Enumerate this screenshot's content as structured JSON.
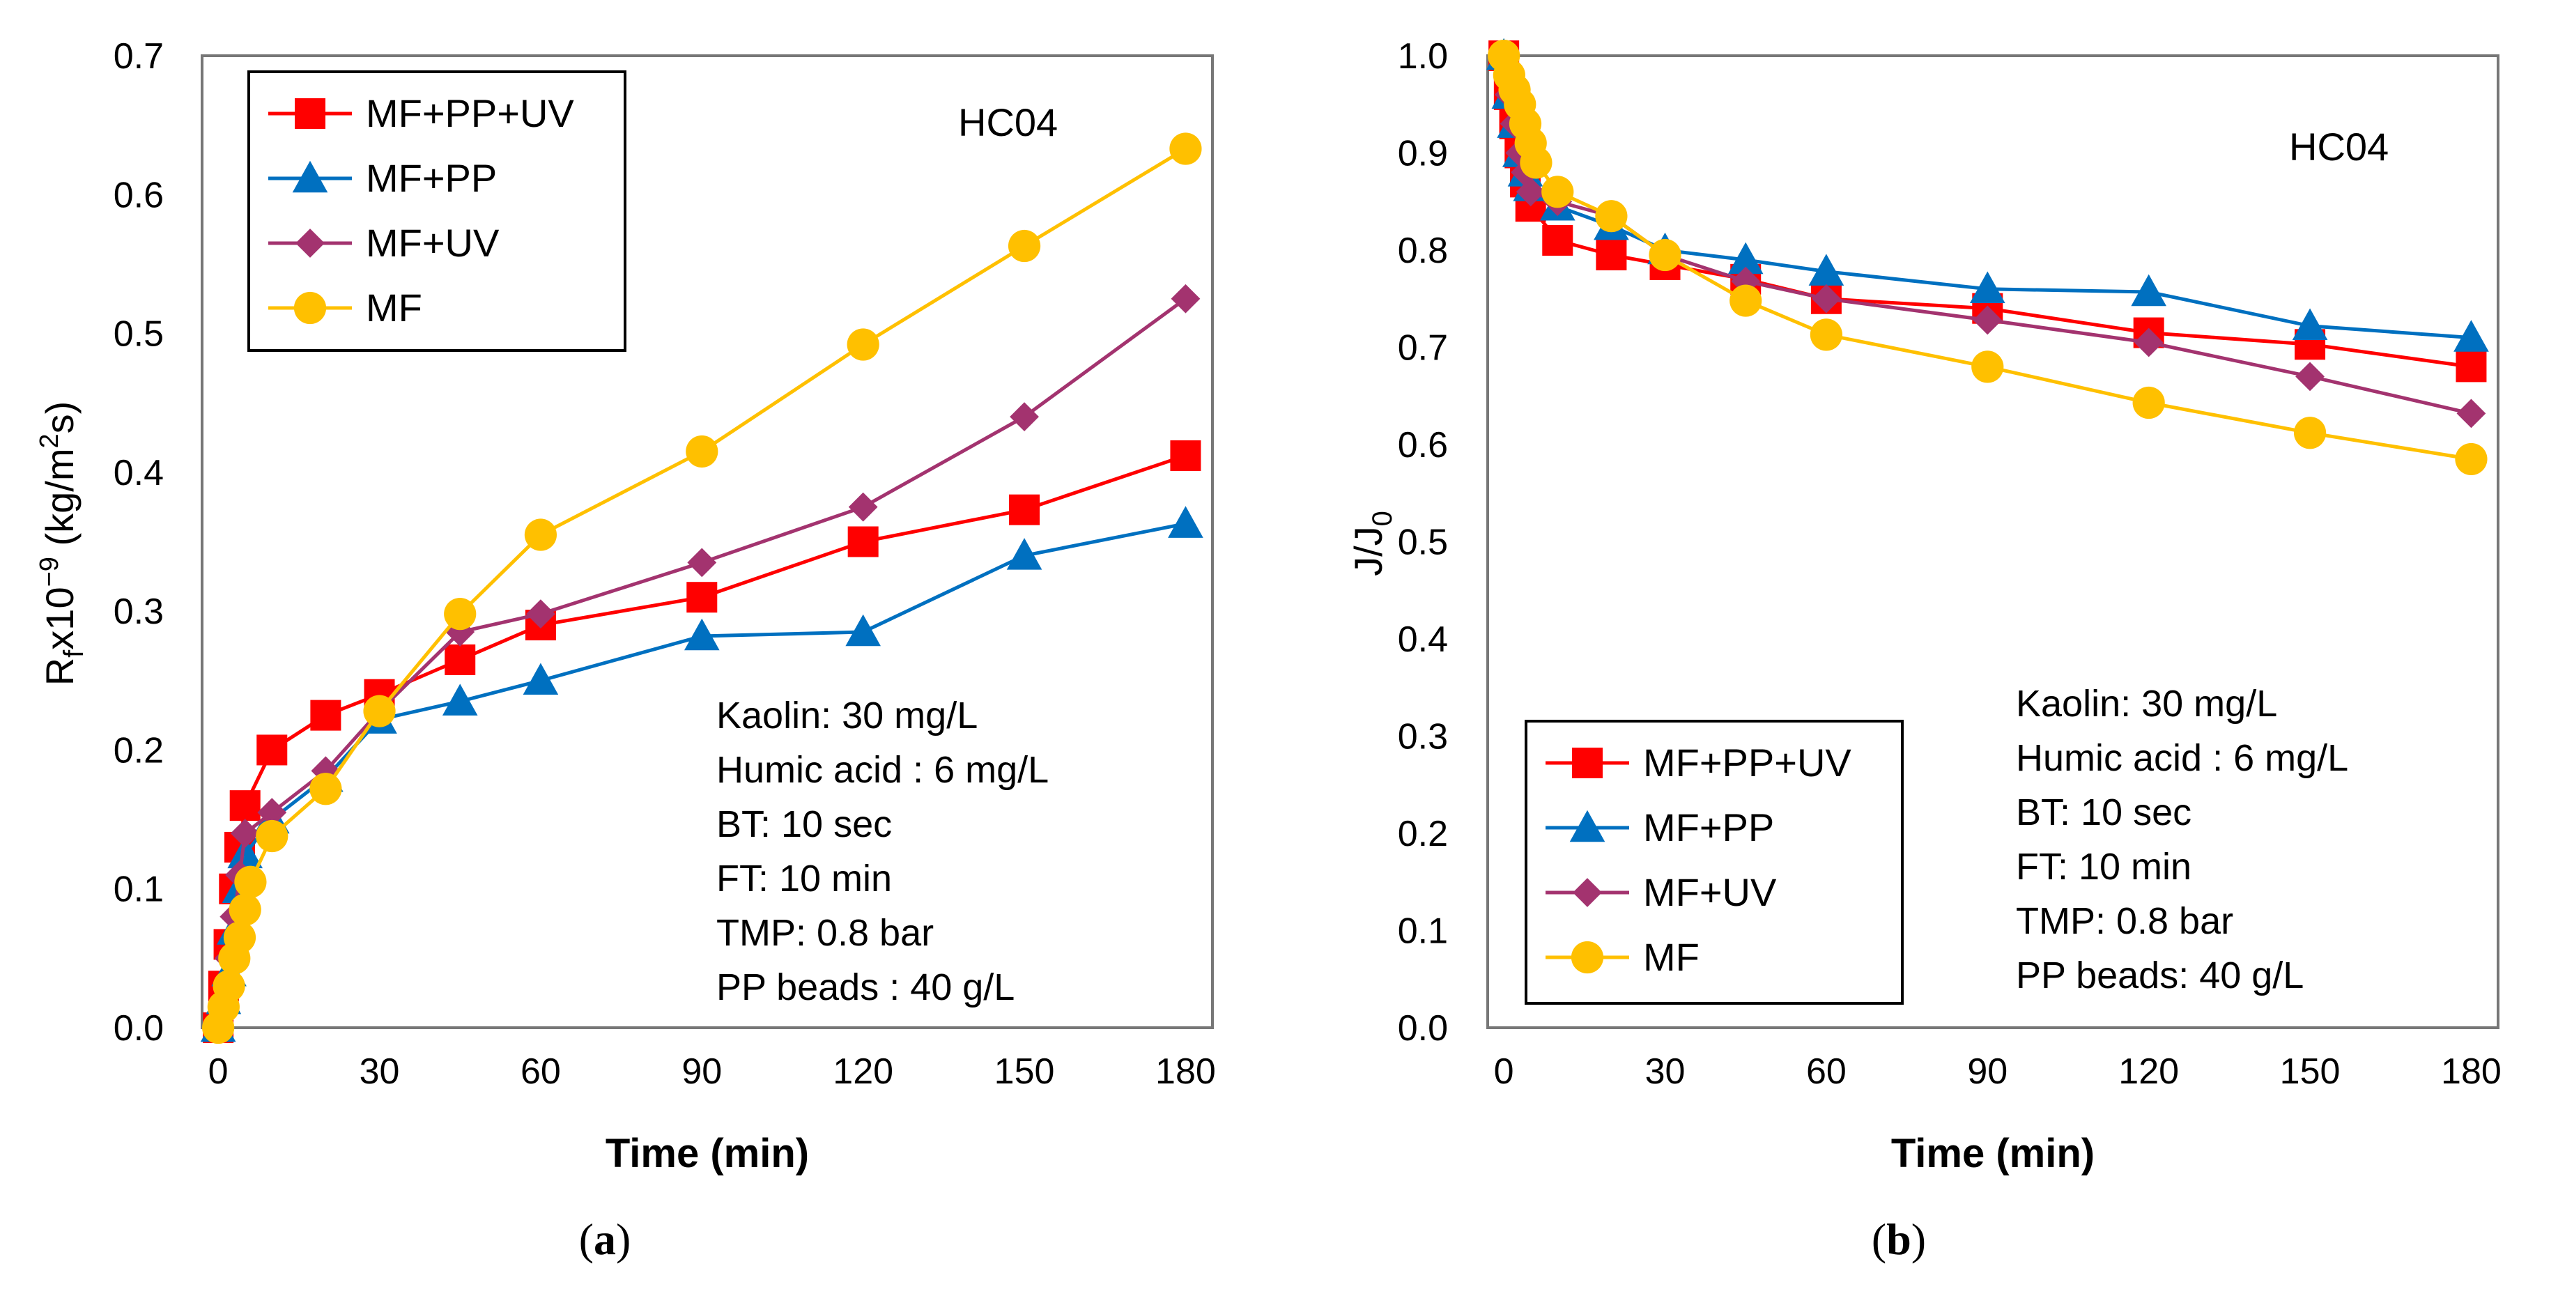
{
  "chart_data": [
    {
      "id": "a",
      "type": "line",
      "caption_paren_open": "(",
      "caption_letter": "a",
      "caption_paren_close": ")",
      "xlabel": "Time (min)",
      "ylabel_main": "R",
      "ylabel_sub": "f",
      "ylabel_rest": "x10",
      "ylabel_exp": "−9",
      "ylabel_unit_open": " (kg/m",
      "ylabel_unit_exp": "2",
      "ylabel_unit_close": "s)",
      "xlim": [
        -3,
        185
      ],
      "ylim": [
        0.0,
        0.7
      ],
      "xticks": [
        0,
        30,
        60,
        90,
        120,
        150,
        180
      ],
      "xtick_labels": [
        "0",
        "30",
        "60",
        "90",
        "120",
        "150",
        "180"
      ],
      "yticks": [
        0.0,
        0.1,
        0.2,
        0.3,
        0.4,
        0.5,
        0.6,
        0.7
      ],
      "ytick_labels": [
        "0.0",
        "0.1",
        "0.2",
        "0.3",
        "0.4",
        "0.5",
        "0.6",
        "0.7"
      ],
      "tag": "HC04",
      "legend_position": "top-left",
      "conditions": [
        "Kaolin: 30 mg/L",
        "Humic acid : 6 mg/L",
        "BT: 10 sec",
        "FT: 10 min",
        "TMP: 0.8 bar",
        "PP beads : 40 g/L"
      ],
      "series": [
        {
          "name": "MF+PP+UV",
          "marker": "square",
          "color": "#ff0000",
          "x": [
            0,
            1,
            2,
            3,
            4,
            5,
            10,
            20,
            30,
            45,
            60,
            90,
            120,
            150,
            180
          ],
          "y": [
            0.0,
            0.03,
            0.06,
            0.1,
            0.13,
            0.16,
            0.2,
            0.225,
            0.24,
            0.265,
            0.29,
            0.31,
            0.35,
            0.373,
            0.412
          ]
        },
        {
          "name": "MF+PP",
          "marker": "triangle",
          "color": "#0070c0",
          "x": [
            0,
            1,
            2,
            3,
            4,
            5,
            10,
            20,
            30,
            45,
            60,
            90,
            120,
            150,
            180
          ],
          "y": [
            0.0,
            0.02,
            0.04,
            0.07,
            0.1,
            0.125,
            0.15,
            0.18,
            0.222,
            0.235,
            0.25,
            0.282,
            0.285,
            0.34,
            0.363
          ]
        },
        {
          "name": "MF+UV",
          "marker": "diamond",
          "color": "#a3336f",
          "x": [
            0,
            1,
            2,
            3,
            4,
            5,
            10,
            20,
            30,
            45,
            60,
            90,
            120,
            150,
            180
          ],
          "y": [
            0.0,
            0.02,
            0.05,
            0.08,
            0.11,
            0.14,
            0.155,
            0.185,
            0.228,
            0.285,
            0.298,
            0.335,
            0.375,
            0.44,
            0.525
          ]
        },
        {
          "name": "MF",
          "marker": "circle",
          "color": "#ffc000",
          "x": [
            0,
            1,
            2,
            3,
            4,
            5,
            6,
            10,
            20,
            30,
            45,
            60,
            90,
            120,
            150,
            180
          ],
          "y": [
            0.0,
            0.015,
            0.03,
            0.05,
            0.065,
            0.085,
            0.105,
            0.138,
            0.172,
            0.228,
            0.298,
            0.355,
            0.415,
            0.492,
            0.563,
            0.633
          ]
        }
      ]
    },
    {
      "id": "b",
      "type": "line",
      "caption_paren_open": "(",
      "caption_letter": "b",
      "caption_paren_close": ")",
      "xlabel": "Time (min)",
      "ylabel_main": "J/J",
      "ylabel_sub": "0",
      "xlim": [
        -3,
        185
      ],
      "ylim": [
        0.0,
        1.0
      ],
      "xticks": [
        0,
        30,
        60,
        90,
        120,
        150,
        180
      ],
      "xtick_labels": [
        "0",
        "30",
        "60",
        "90",
        "120",
        "150",
        "180"
      ],
      "yticks": [
        0.0,
        0.1,
        0.2,
        0.3,
        0.4,
        0.5,
        0.6,
        0.7,
        0.8,
        0.9,
        1.0
      ],
      "ytick_labels": [
        "0.0",
        "0.1",
        "0.2",
        "0.3",
        "0.4",
        "0.5",
        "0.6",
        "0.7",
        "0.8",
        "0.9",
        "1.0"
      ],
      "tag": "HC04",
      "legend_position": "bottom-left",
      "conditions": [
        "Kaolin: 30 mg/L",
        "Humic acid : 6 mg/L",
        "BT: 10 sec",
        "FT: 10 min",
        "TMP: 0.8 bar",
        "PP beads: 40 g/L"
      ],
      "series": [
        {
          "name": "MF+PP+UV",
          "marker": "square",
          "color": "#ff0000",
          "x": [
            0,
            1,
            2,
            3,
            4,
            5,
            10,
            20,
            30,
            45,
            60,
            90,
            120,
            150,
            180
          ],
          "y": [
            1.0,
            0.96,
            0.93,
            0.9,
            0.87,
            0.845,
            0.81,
            0.795,
            0.785,
            0.77,
            0.75,
            0.74,
            0.715,
            0.703,
            0.68
          ]
        },
        {
          "name": "MF+PP",
          "marker": "triangle",
          "color": "#0070c0",
          "x": [
            0,
            1,
            2,
            3,
            4,
            5,
            10,
            20,
            30,
            45,
            60,
            90,
            120,
            150,
            180
          ],
          "y": [
            1.0,
            0.96,
            0.93,
            0.9,
            0.88,
            0.865,
            0.845,
            0.825,
            0.8,
            0.79,
            0.778,
            0.76,
            0.757,
            0.722,
            0.71
          ]
        },
        {
          "name": "MF+UV",
          "marker": "diamond",
          "color": "#a3336f",
          "x": [
            0,
            1,
            2,
            3,
            4,
            5,
            10,
            20,
            30,
            45,
            60,
            90,
            120,
            150,
            180
          ],
          "y": [
            1.0,
            0.96,
            0.93,
            0.9,
            0.88,
            0.86,
            0.85,
            0.835,
            0.795,
            0.768,
            0.75,
            0.728,
            0.705,
            0.67,
            0.632
          ]
        },
        {
          "name": "MF",
          "marker": "circle",
          "color": "#ffc000",
          "x": [
            0,
            1,
            2,
            3,
            4,
            5,
            6,
            10,
            20,
            30,
            45,
            60,
            90,
            120,
            150,
            180
          ],
          "y": [
            1.0,
            0.98,
            0.965,
            0.95,
            0.93,
            0.91,
            0.89,
            0.86,
            0.835,
            0.795,
            0.748,
            0.713,
            0.68,
            0.643,
            0.612,
            0.585
          ]
        }
      ]
    }
  ]
}
